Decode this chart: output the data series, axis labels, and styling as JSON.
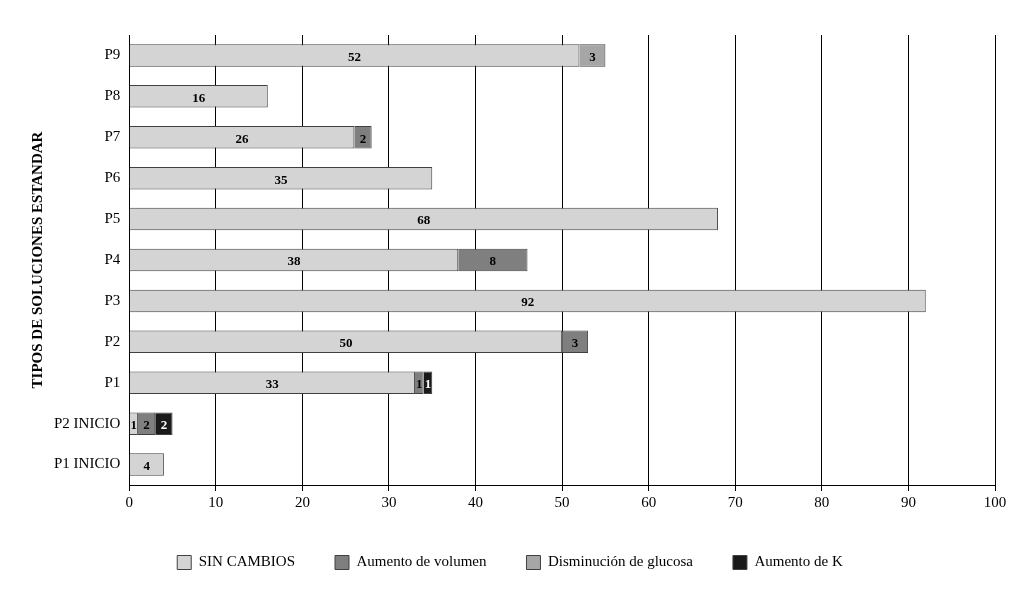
{
  "chart_data": {
    "type": "bar",
    "orientation": "horizontal",
    "stacked": true,
    "ylabel": "TIPOS DE SOLUCIONES ESTANDAR",
    "categories": [
      "P9",
      "P8",
      "P7",
      "P6",
      "P5",
      "P4",
      "P3",
      "P2",
      "P1",
      "P2 INICIO",
      "P1 INICIO"
    ],
    "series": [
      {
        "name": "SIN CAMBIOS",
        "color": "#d4d4d4",
        "values": [
          52,
          16,
          26,
          35,
          68,
          38,
          92,
          50,
          33,
          1,
          4
        ]
      },
      {
        "name": "Aumento de volumen",
        "color": "#7f7f7f",
        "values": [
          null,
          null,
          2,
          null,
          null,
          8,
          null,
          3,
          1,
          2,
          null
        ]
      },
      {
        "name": "Disminución de glucosa",
        "color": "#a6a6a6",
        "values": [
          3,
          null,
          null,
          null,
          null,
          null,
          null,
          null,
          null,
          null,
          null
        ]
      },
      {
        "name": "Aumento de K",
        "color": "#1a1a1a",
        "values": [
          null,
          null,
          null,
          null,
          null,
          null,
          null,
          null,
          1,
          2,
          null
        ]
      }
    ],
    "xlim": [
      0,
      100
    ],
    "xticks": [
      0,
      10,
      20,
      30,
      40,
      50,
      60,
      70,
      80,
      90,
      100
    ],
    "grid": "x",
    "legend": "bottom",
    "data_labels": true
  }
}
